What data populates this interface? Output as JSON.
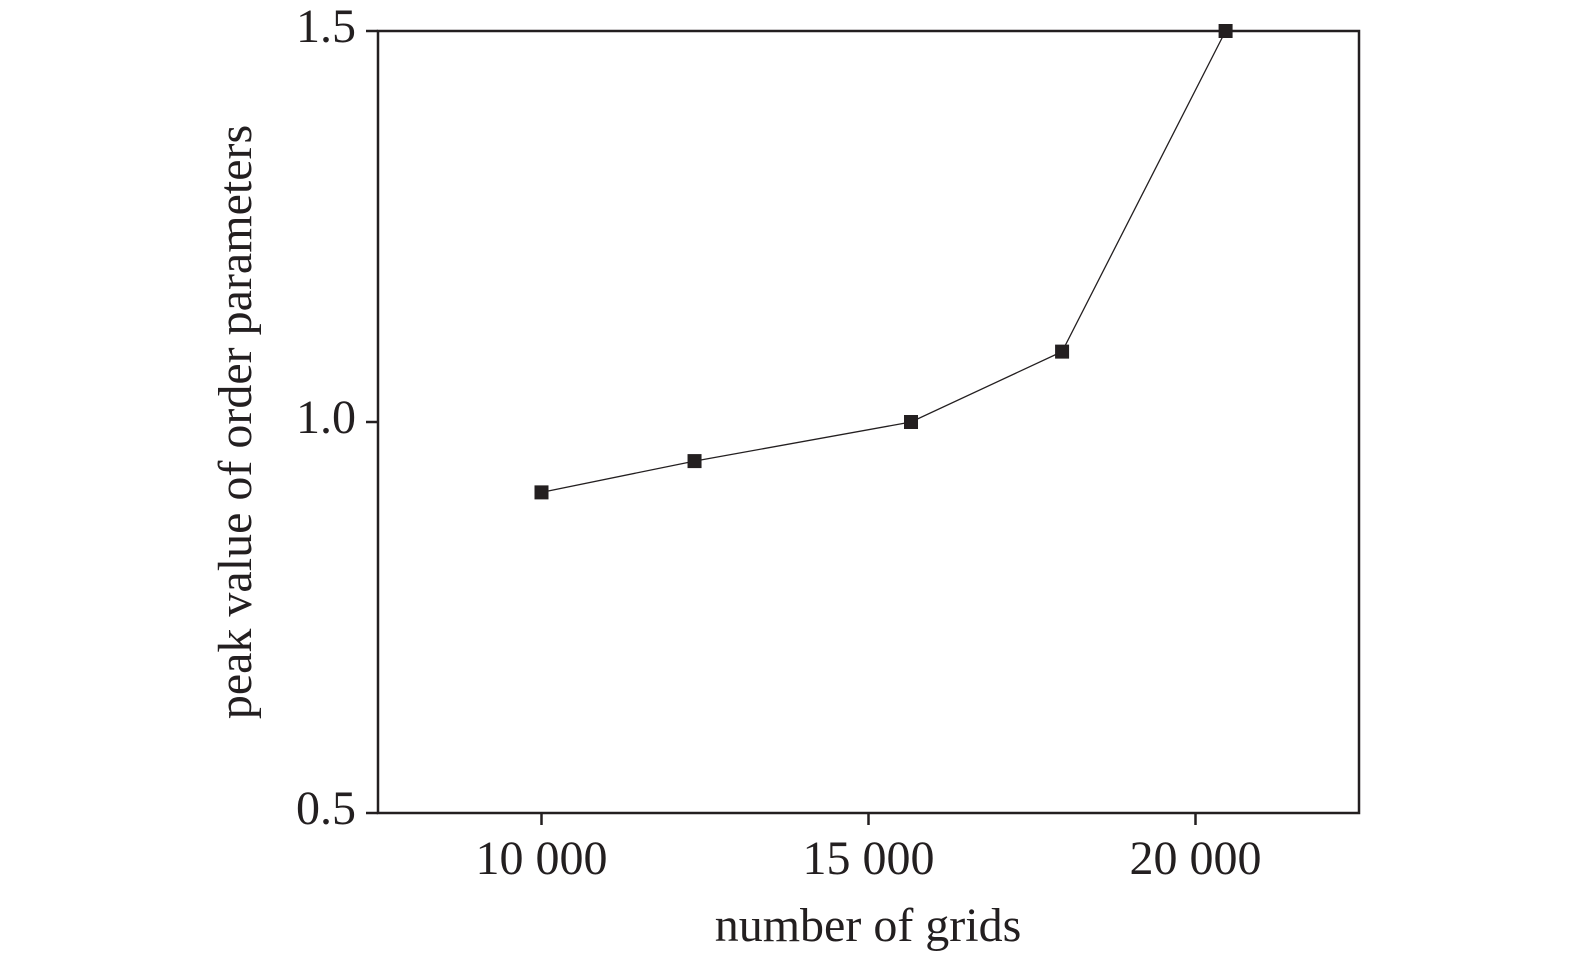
{
  "chart_data": {
    "type": "line",
    "x_label": "number of grids",
    "y_label": "peak value of order parameters",
    "x": [
      10000,
      12340,
      15650,
      17960,
      20460
    ],
    "values": [
      0.91,
      0.95,
      1.0,
      1.09,
      1.5
    ],
    "color": "#231f20",
    "marker": "square",
    "xlim": [
      7500,
      22500
    ],
    "xticks": [
      {
        "value": 10000,
        "label": "10 000"
      },
      {
        "value": 15000,
        "label": "15 000"
      },
      {
        "value": 20000,
        "label": "20 000"
      }
    ],
    "ylim": [
      0.5,
      1.5
    ],
    "yticks": [
      0.5,
      {
        "value": 1,
        "label": "1.0"
      },
      1.5
    ],
    "grid": false
  }
}
